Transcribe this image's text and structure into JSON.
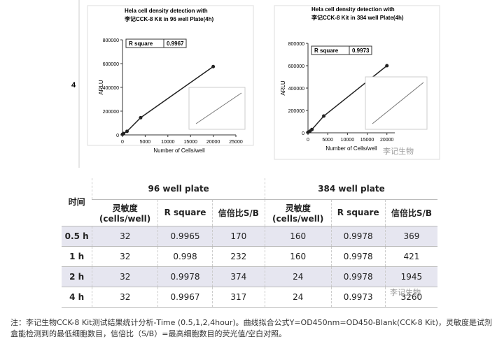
{
  "row_label": "4",
  "chart_data": [
    {
      "type": "line",
      "title_lines": [
        "Hela cell density detection with",
        "李记CCK-8 Kit in 96 well Plate(4h)"
      ],
      "stat_label": "R square",
      "stat_value": "0.9967",
      "x_label": "Number of Cells/well",
      "y_label": "ARLU",
      "x": [
        0,
        250,
        1000,
        4000,
        20000
      ],
      "values": [
        5000,
        12000,
        30000,
        145000,
        575000
      ],
      "color": "#222222",
      "xlim": [
        0,
        25000
      ],
      "xticks": [
        0,
        5000,
        10000,
        15000,
        20000,
        25000
      ],
      "ylim": [
        0,
        800000
      ],
      "yticks": [
        0,
        200000,
        400000,
        600000,
        800000
      ]
    },
    {
      "type": "line",
      "title_lines": [
        "Hela cell density detection with",
        "李记CCK-8 Kit in 384 well Plate(4h)"
      ],
      "stat_label": "R square",
      "stat_value": "0.9973",
      "x_label": "Number of Cells/well",
      "y_label": "ARLU",
      "x": [
        0,
        500,
        1000,
        4000,
        20000
      ],
      "values": [
        5000,
        15000,
        30000,
        150000,
        600000
      ],
      "color": "#222222",
      "xlim": [
        0,
        22000
      ],
      "xticks": [
        0,
        5000,
        10000,
        15000,
        20000
      ],
      "ylim": [
        0,
        800000
      ],
      "yticks": [
        0,
        200000,
        400000,
        600000,
        800000
      ]
    }
  ],
  "watermarks": [
    "李记生物",
    "李记生物"
  ],
  "table": {
    "group_headers": [
      "时间",
      "96 well plate",
      "384 well plate"
    ],
    "sub_headers": [
      "灵敏度\n(cells/well)",
      "R square",
      "信倍比S/B",
      "灵敏度\n(cells/well)",
      "R square",
      "信倍比S/B"
    ],
    "rows": [
      [
        "0.5 h",
        "32",
        "0.9965",
        "170",
        "160",
        "0.9978",
        "369"
      ],
      [
        "1 h",
        "32",
        "0.998",
        "232",
        "160",
        "0.9978",
        "421"
      ],
      [
        "2 h",
        "32",
        "0.9978",
        "374",
        "24",
        "0.9978",
        "1945"
      ],
      [
        "4 h",
        "32",
        "0.9967",
        "317",
        "24",
        "0.9973",
        "3260"
      ]
    ]
  },
  "note": "注：李记生物CCK-8 Kit测试结果统计分析-Time (0.5,1,2,4hour)。曲线拟合公式Y=OD450nm=OD450-Blank(CCK-8 Kit)，灵敏度是试剂盒能检测到的最低细胞数目，信倍比（S/B）=最高细胞数目的荧光值/空白对照。"
}
